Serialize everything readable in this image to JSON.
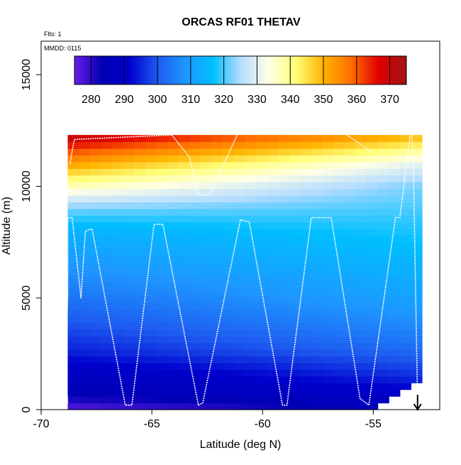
{
  "chart_data": {
    "type": "heatmap",
    "title": "ORCAS RF01 THETAV",
    "annotations": {
      "flights": "Flts: 1",
      "date": "MMDD: 0115"
    },
    "xlabel": "Latitude (deg N)",
    "ylabel": "Altitude (m)",
    "xlim": [
      -70,
      -52
    ],
    "ylim": [
      0,
      16500
    ],
    "x_ticks": [
      -70,
      -65,
      -60,
      -55
    ],
    "x_tick_labels": [
      "-70",
      "-65",
      "-60",
      "-55"
    ],
    "y_ticks": [
      0,
      5000,
      10000,
      15000
    ],
    "y_tick_labels": [
      "0",
      "5000",
      "10000",
      "15000"
    ],
    "colorbar": {
      "range": [
        275,
        375
      ],
      "ticks": [
        280,
        290,
        300,
        310,
        320,
        330,
        340,
        350,
        360,
        370
      ],
      "tick_labels": [
        "280",
        "290",
        "300",
        "310",
        "320",
        "330",
        "340",
        "350",
        "360",
        "370"
      ],
      "colors": [
        "#6a1ee6",
        "#0000b4",
        "#0000cd",
        "#1e5af0",
        "#1e96ff",
        "#00bfff",
        "#b4dcff",
        "#ffffe6",
        "#ffff78",
        "#ffb400",
        "#ff6e00",
        "#e10000",
        "#a01414"
      ]
    },
    "x_edges": [
      -68.8,
      -68.3,
      -67.8,
      -67.3,
      -66.8,
      -66.3,
      -65.8,
      -65.3,
      -64.8,
      -64.3,
      -63.8,
      -63.3,
      -62.8,
      -62.3,
      -61.8,
      -61.3,
      -60.8,
      -60.3,
      -59.8,
      -59.3,
      -58.8,
      -58.3,
      -57.8,
      -57.3,
      -56.8,
      -56.3,
      -55.8,
      -55.3,
      -54.8,
      -54.3,
      -53.8,
      -53.3,
      -52.8
    ],
    "z_edges": [
      0,
      300,
      600,
      900,
      1200,
      1500,
      1800,
      2100,
      2400,
      2700,
      3000,
      3300,
      3600,
      3900,
      4200,
      4500,
      4800,
      5100,
      5400,
      5700,
      6000,
      6300,
      6600,
      6900,
      7200,
      7500,
      7800,
      8100,
      8400,
      8700,
      9000,
      9300,
      9600,
      9900,
      10200,
      10500,
      10800,
      11100,
      11400,
      11700,
      12000,
      12300
    ],
    "col_bottom": [
      0,
      0,
      0,
      0,
      0,
      0,
      0,
      0,
      0,
      0,
      0,
      0,
      0,
      0,
      0,
      0,
      0,
      0,
      0,
      0,
      0,
      0,
      0,
      0,
      0,
      0,
      0,
      0,
      300,
      600,
      900,
      1200
    ],
    "col_top": [
      12300,
      12300,
      12300,
      12300,
      12300,
      12300,
      12300,
      12300,
      12300,
      12300,
      12300,
      12300,
      12300,
      12300,
      12300,
      12300,
      12300,
      12300,
      12300,
      12300,
      12300,
      12300,
      12300,
      12300,
      12300,
      12300,
      12300,
      12300,
      12300,
      12300,
      12300,
      12300
    ],
    "theta_profile_south": [
      {
        "alt": 0,
        "theta": 276
      },
      {
        "alt": 600,
        "theta": 283
      },
      {
        "alt": 1500,
        "theta": 287
      },
      {
        "alt": 2500,
        "theta": 294
      },
      {
        "alt": 4000,
        "theta": 300
      },
      {
        "alt": 6000,
        "theta": 307
      },
      {
        "alt": 8000,
        "theta": 314
      },
      {
        "alt": 9000,
        "theta": 322
      },
      {
        "alt": 10000,
        "theta": 337
      },
      {
        "alt": 11000,
        "theta": 352
      },
      {
        "alt": 12300,
        "theta": 372
      }
    ],
    "theta_profile_north": [
      {
        "alt": 0,
        "theta": 285
      },
      {
        "alt": 1500,
        "theta": 296
      },
      {
        "alt": 3000,
        "theta": 304
      },
      {
        "alt": 5000,
        "theta": 311
      },
      {
        "alt": 8000,
        "theta": 318
      },
      {
        "alt": 10000,
        "theta": 322
      },
      {
        "alt": 11000,
        "theta": 330
      },
      {
        "alt": 12300,
        "theta": 350
      }
    ],
    "flight_track": [
      {
        "lat": -68.8,
        "alt": 300
      },
      {
        "lat": -68.9,
        "alt": 2000
      },
      {
        "lat": -68.8,
        "alt": 5000
      },
      {
        "lat": -68.8,
        "alt": 8600
      },
      {
        "lat": -68.6,
        "alt": 8600
      },
      {
        "lat": -68.2,
        "alt": 5000
      },
      {
        "lat": -68.0,
        "alt": 8000
      },
      {
        "lat": -67.7,
        "alt": 8100
      },
      {
        "lat": -66.2,
        "alt": 200
      },
      {
        "lat": -65.9,
        "alt": 200
      },
      {
        "lat": -64.9,
        "alt": 8300
      },
      {
        "lat": -64.5,
        "alt": 8300
      },
      {
        "lat": -62.9,
        "alt": 200
      },
      {
        "lat": -62.7,
        "alt": 300
      },
      {
        "lat": -61.0,
        "alt": 8500
      },
      {
        "lat": -60.6,
        "alt": 8400
      },
      {
        "lat": -59.1,
        "alt": 200
      },
      {
        "lat": -58.9,
        "alt": 200
      },
      {
        "lat": -57.8,
        "alt": 8600
      },
      {
        "lat": -56.9,
        "alt": 8600
      },
      {
        "lat": -55.6,
        "alt": 500
      },
      {
        "lat": -55.2,
        "alt": 200
      },
      {
        "lat": -54.0,
        "alt": 8600
      },
      {
        "lat": -53.8,
        "alt": 8600
      },
      {
        "lat": -53.3,
        "alt": 12600
      },
      {
        "lat": -53.2,
        "alt": 11500
      },
      {
        "lat": -53.0,
        "alt": 300
      }
    ],
    "upper_track": [
      {
        "lat": -68.7,
        "alt": 11000
      },
      {
        "lat": -68.5,
        "alt": 12100
      },
      {
        "lat": -64.1,
        "alt": 12300
      },
      {
        "lat": -63.3,
        "alt": 11300
      },
      {
        "lat": -62.9,
        "alt": 9600
      },
      {
        "lat": -62.4,
        "alt": 9600
      },
      {
        "lat": -61.1,
        "alt": 12400
      },
      {
        "lat": -56.5,
        "alt": 12500
      },
      {
        "lat": -55.0,
        "alt": 11500
      }
    ],
    "arrow_marker_lat": -53.0
  }
}
